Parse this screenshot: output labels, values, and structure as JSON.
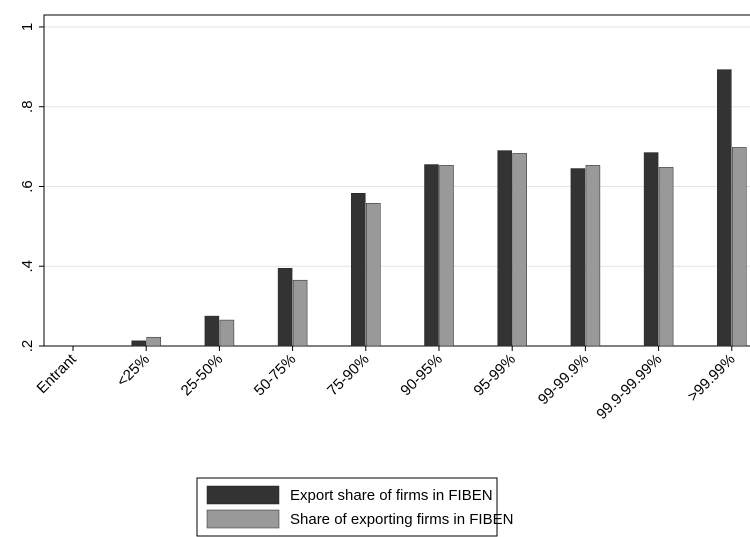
{
  "chart_data": {
    "type": "bar",
    "categories": [
      "Entrant",
      "<25%",
      "25-50%",
      "50-75%",
      "75-90%",
      "90-95%",
      "95-99%",
      "99-99.9%",
      "99.9-99.99%",
      ">99.99%"
    ],
    "series": [
      {
        "name": "Export share of firms in FIBEN",
        "color": "#333333",
        "values": [
          null,
          0.213,
          0.275,
          0.395,
          0.583,
          0.655,
          0.69,
          0.645,
          0.685,
          0.893
        ]
      },
      {
        "name": "Share of exporting firms in FIBEN",
        "color": "#999999",
        "values": [
          null,
          0.222,
          0.265,
          0.365,
          0.558,
          0.653,
          0.683,
          0.653,
          0.648,
          0.698
        ]
      }
    ],
    "ylim": [
      0.2,
      1.03
    ],
    "yticks": [
      {
        "value": 0.2,
        "label": ".2"
      },
      {
        "value": 0.4,
        "label": ".4"
      },
      {
        "value": 0.6,
        "label": ".6"
      },
      {
        "value": 0.8,
        "label": ".8"
      },
      1
    ],
    "grid": true,
    "legend": "bottom"
  }
}
